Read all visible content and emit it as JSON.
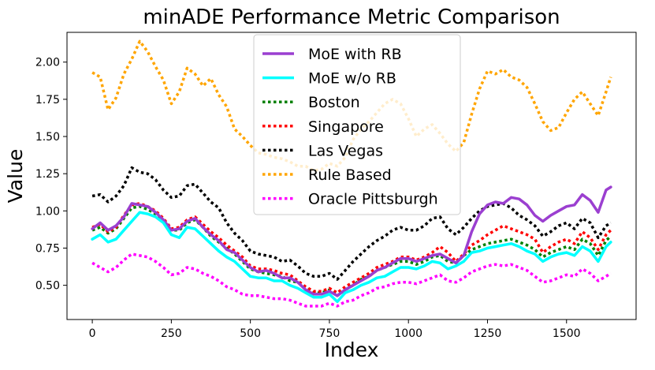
{
  "chart_data": {
    "type": "line",
    "title": "minADE Performance Metric Comparison",
    "xlabel": "Index",
    "ylabel": "Value",
    "xlim": [
      -80,
      1720
    ],
    "ylim": [
      0.27,
      2.2
    ],
    "xticks": [
      0,
      250,
      500,
      750,
      1000,
      1250,
      1500
    ],
    "xtick_labels": [
      "0",
      "250",
      "500",
      "750",
      "1000",
      "1250",
      "1500"
    ],
    "yticks": [
      0.5,
      0.75,
      1.0,
      1.25,
      1.5,
      1.75,
      2.0
    ],
    "ytick_labels": [
      "0.50",
      "0.75",
      "1.00",
      "1.25",
      "1.50",
      "1.75",
      "2.00"
    ],
    "legend_position": "top-center",
    "series": [
      {
        "name": "MoE with RB",
        "color": "#9b3fd0",
        "style": "solid",
        "x": [
          0,
          25,
          50,
          75,
          100,
          125,
          150,
          175,
          200,
          225,
          250,
          275,
          300,
          325,
          350,
          375,
          400,
          425,
          450,
          475,
          500,
          525,
          550,
          575,
          600,
          625,
          650,
          675,
          700,
          725,
          750,
          775,
          800,
          825,
          850,
          875,
          900,
          925,
          950,
          975,
          1000,
          1025,
          1050,
          1075,
          1100,
          1125,
          1150,
          1175,
          1200,
          1225,
          1250,
          1275,
          1300,
          1325,
          1350,
          1375,
          1400,
          1425,
          1450,
          1475,
          1500,
          1525,
          1550,
          1575,
          1600,
          1625,
          1640
        ],
        "values": [
          0.88,
          0.92,
          0.87,
          0.9,
          0.96,
          1.05,
          1.04,
          1.03,
          0.99,
          0.94,
          0.87,
          0.88,
          0.93,
          0.95,
          0.89,
          0.84,
          0.8,
          0.74,
          0.72,
          0.67,
          0.62,
          0.59,
          0.6,
          0.58,
          0.55,
          0.55,
          0.52,
          0.47,
          0.44,
          0.44,
          0.46,
          0.43,
          0.47,
          0.5,
          0.53,
          0.56,
          0.6,
          0.62,
          0.65,
          0.68,
          0.68,
          0.66,
          0.68,
          0.7,
          0.71,
          0.68,
          0.65,
          0.7,
          0.86,
          0.98,
          1.04,
          1.06,
          1.05,
          1.09,
          1.08,
          1.04,
          0.97,
          0.93,
          0.97,
          1.0,
          1.03,
          1.04,
          1.11,
          1.07,
          0.99,
          1.14,
          1.16
        ]
      },
      {
        "name": "MoE w/o RB",
        "color": "#00ffff",
        "style": "solid",
        "x": [
          0,
          25,
          50,
          75,
          100,
          125,
          150,
          175,
          200,
          225,
          250,
          275,
          300,
          325,
          350,
          375,
          400,
          425,
          450,
          475,
          500,
          525,
          550,
          575,
          600,
          625,
          650,
          675,
          700,
          725,
          750,
          775,
          800,
          825,
          850,
          875,
          900,
          925,
          950,
          975,
          1000,
          1025,
          1050,
          1075,
          1100,
          1125,
          1150,
          1175,
          1200,
          1225,
          1250,
          1275,
          1300,
          1325,
          1350,
          1375,
          1400,
          1425,
          1450,
          1475,
          1500,
          1525,
          1550,
          1575,
          1600,
          1625,
          1640
        ],
        "values": [
          0.81,
          0.84,
          0.79,
          0.81,
          0.87,
          0.93,
          0.99,
          0.98,
          0.96,
          0.92,
          0.84,
          0.82,
          0.89,
          0.88,
          0.83,
          0.78,
          0.73,
          0.69,
          0.66,
          0.61,
          0.56,
          0.55,
          0.55,
          0.53,
          0.53,
          0.5,
          0.48,
          0.45,
          0.42,
          0.42,
          0.44,
          0.39,
          0.45,
          0.47,
          0.5,
          0.52,
          0.55,
          0.56,
          0.59,
          0.62,
          0.62,
          0.61,
          0.63,
          0.66,
          0.65,
          0.61,
          0.63,
          0.66,
          0.72,
          0.73,
          0.75,
          0.76,
          0.77,
          0.78,
          0.76,
          0.73,
          0.71,
          0.66,
          0.69,
          0.71,
          0.72,
          0.7,
          0.76,
          0.73,
          0.66,
          0.76,
          0.79
        ]
      },
      {
        "name": "Boston",
        "color": "#008000",
        "style": "dotted",
        "x": [
          0,
          25,
          50,
          75,
          100,
          125,
          150,
          175,
          200,
          225,
          250,
          275,
          300,
          325,
          350,
          375,
          400,
          425,
          450,
          475,
          500,
          525,
          550,
          575,
          600,
          625,
          650,
          675,
          700,
          725,
          750,
          775,
          800,
          825,
          850,
          875,
          900,
          925,
          950,
          975,
          1000,
          1025,
          1050,
          1075,
          1100,
          1125,
          1150,
          1175,
          1200,
          1225,
          1250,
          1275,
          1300,
          1325,
          1350,
          1375,
          1400,
          1425,
          1450,
          1475,
          1500,
          1525,
          1550,
          1575,
          1600,
          1625,
          1640
        ],
        "values": [
          0.87,
          0.89,
          0.85,
          0.88,
          0.95,
          1.02,
          1.03,
          1.01,
          0.98,
          0.93,
          0.87,
          0.87,
          0.92,
          0.94,
          0.89,
          0.83,
          0.79,
          0.75,
          0.71,
          0.66,
          0.61,
          0.59,
          0.58,
          0.57,
          0.56,
          0.53,
          0.52,
          0.48,
          0.45,
          0.45,
          0.47,
          0.43,
          0.47,
          0.5,
          0.54,
          0.56,
          0.6,
          0.62,
          0.64,
          0.66,
          0.66,
          0.64,
          0.66,
          0.69,
          0.7,
          0.66,
          0.65,
          0.7,
          0.74,
          0.76,
          0.78,
          0.79,
          0.8,
          0.81,
          0.79,
          0.77,
          0.74,
          0.69,
          0.72,
          0.74,
          0.76,
          0.74,
          0.81,
          0.78,
          0.7,
          0.8,
          0.83
        ]
      },
      {
        "name": "Singapore",
        "color": "#ff0000",
        "style": "dotted",
        "x": [
          0,
          25,
          50,
          75,
          100,
          125,
          150,
          175,
          200,
          225,
          250,
          275,
          300,
          325,
          350,
          375,
          400,
          425,
          450,
          475,
          500,
          525,
          550,
          575,
          600,
          625,
          650,
          675,
          700,
          725,
          750,
          775,
          800,
          825,
          850,
          875,
          900,
          925,
          950,
          975,
          1000,
          1025,
          1050,
          1075,
          1100,
          1125,
          1150,
          1175,
          1200,
          1225,
          1250,
          1275,
          1300,
          1325,
          1350,
          1375,
          1400,
          1425,
          1450,
          1475,
          1500,
          1525,
          1550,
          1575,
          1600,
          1625,
          1640
        ],
        "values": [
          0.89,
          0.91,
          0.86,
          0.89,
          0.97,
          1.04,
          1.05,
          1.03,
          1.0,
          0.95,
          0.88,
          0.89,
          0.94,
          0.96,
          0.91,
          0.86,
          0.82,
          0.77,
          0.73,
          0.69,
          0.63,
          0.61,
          0.61,
          0.6,
          0.58,
          0.57,
          0.53,
          0.49,
          0.46,
          0.46,
          0.48,
          0.45,
          0.49,
          0.52,
          0.55,
          0.58,
          0.62,
          0.64,
          0.66,
          0.69,
          0.69,
          0.67,
          0.69,
          0.72,
          0.76,
          0.72,
          0.66,
          0.71,
          0.77,
          0.8,
          0.84,
          0.87,
          0.9,
          0.88,
          0.86,
          0.84,
          0.81,
          0.72,
          0.76,
          0.79,
          0.81,
          0.78,
          0.86,
          0.82,
          0.74,
          0.84,
          0.87
        ]
      },
      {
        "name": "Las Vegas",
        "color": "#000000",
        "style": "dotted",
        "x": [
          0,
          25,
          50,
          75,
          100,
          125,
          150,
          175,
          200,
          225,
          250,
          275,
          300,
          325,
          350,
          375,
          400,
          425,
          450,
          475,
          500,
          525,
          550,
          575,
          600,
          625,
          650,
          675,
          700,
          725,
          750,
          775,
          800,
          825,
          850,
          875,
          900,
          925,
          950,
          975,
          1000,
          1025,
          1050,
          1075,
          1100,
          1125,
          1150,
          1175,
          1200,
          1225,
          1250,
          1275,
          1300,
          1325,
          1350,
          1375,
          1400,
          1425,
          1450,
          1475,
          1500,
          1525,
          1550,
          1575,
          1600,
          1625,
          1640
        ],
        "values": [
          1.1,
          1.11,
          1.06,
          1.1,
          1.17,
          1.29,
          1.26,
          1.25,
          1.21,
          1.14,
          1.09,
          1.1,
          1.17,
          1.18,
          1.12,
          1.06,
          1.02,
          0.92,
          0.85,
          0.8,
          0.73,
          0.71,
          0.7,
          0.69,
          0.66,
          0.67,
          0.63,
          0.58,
          0.56,
          0.56,
          0.58,
          0.54,
          0.6,
          0.66,
          0.71,
          0.76,
          0.8,
          0.83,
          0.87,
          0.89,
          0.87,
          0.87,
          0.9,
          0.95,
          0.96,
          0.88,
          0.84,
          0.89,
          0.95,
          1.0,
          1.03,
          1.04,
          1.05,
          1.02,
          0.97,
          0.94,
          0.9,
          0.83,
          0.86,
          0.9,
          0.92,
          0.88,
          0.95,
          0.92,
          0.82,
          0.9,
          0.92
        ]
      },
      {
        "name": "Rule Based",
        "color": "#ffa500",
        "style": "dotted",
        "x": [
          0,
          25,
          50,
          75,
          100,
          125,
          150,
          175,
          200,
          225,
          250,
          275,
          300,
          325,
          350,
          375,
          400,
          425,
          450,
          475,
          500,
          525,
          550,
          575,
          600,
          625,
          650,
          675,
          700,
          725,
          750,
          775,
          800,
          825,
          850,
          875,
          900,
          925,
          950,
          975,
          1000,
          1025,
          1050,
          1075,
          1100,
          1125,
          1150,
          1175,
          1200,
          1225,
          1250,
          1275,
          1300,
          1325,
          1350,
          1375,
          1400,
          1425,
          1450,
          1475,
          1500,
          1525,
          1550,
          1575,
          1600,
          1625,
          1640
        ],
        "values": [
          1.93,
          1.9,
          1.68,
          1.76,
          1.92,
          2.02,
          2.14,
          2.07,
          1.97,
          1.88,
          1.72,
          1.8,
          1.96,
          1.92,
          1.84,
          1.89,
          1.78,
          1.7,
          1.55,
          1.5,
          1.44,
          1.39,
          1.38,
          1.36,
          1.35,
          1.33,
          1.3,
          1.3,
          1.27,
          1.28,
          1.32,
          1.3,
          1.36,
          1.48,
          1.55,
          1.6,
          1.66,
          1.72,
          1.75,
          1.72,
          1.62,
          1.5,
          1.55,
          1.58,
          1.52,
          1.45,
          1.4,
          1.46,
          1.65,
          1.82,
          1.94,
          1.92,
          1.95,
          1.9,
          1.88,
          1.83,
          1.72,
          1.6,
          1.54,
          1.56,
          1.66,
          1.75,
          1.8,
          1.72,
          1.64,
          1.8,
          1.9
        ]
      },
      {
        "name": "Oracle Pittsburgh",
        "color": "#ff00ff",
        "style": "dotted",
        "x": [
          0,
          25,
          50,
          75,
          100,
          125,
          150,
          175,
          200,
          225,
          250,
          275,
          300,
          325,
          350,
          375,
          400,
          425,
          450,
          475,
          500,
          525,
          550,
          575,
          600,
          625,
          650,
          675,
          700,
          725,
          750,
          775,
          800,
          825,
          850,
          875,
          900,
          925,
          950,
          975,
          1000,
          1025,
          1050,
          1075,
          1100,
          1125,
          1150,
          1175,
          1200,
          1225,
          1250,
          1275,
          1300,
          1325,
          1350,
          1375,
          1400,
          1425,
          1450,
          1475,
          1500,
          1525,
          1550,
          1575,
          1600,
          1625,
          1640
        ],
        "values": [
          0.65,
          0.62,
          0.59,
          0.62,
          0.67,
          0.71,
          0.7,
          0.69,
          0.66,
          0.62,
          0.57,
          0.58,
          0.62,
          0.61,
          0.58,
          0.56,
          0.53,
          0.49,
          0.47,
          0.44,
          0.43,
          0.43,
          0.42,
          0.41,
          0.41,
          0.4,
          0.38,
          0.36,
          0.36,
          0.36,
          0.38,
          0.36,
          0.39,
          0.4,
          0.43,
          0.45,
          0.48,
          0.49,
          0.51,
          0.52,
          0.52,
          0.51,
          0.53,
          0.55,
          0.57,
          0.53,
          0.52,
          0.55,
          0.59,
          0.61,
          0.63,
          0.64,
          0.63,
          0.64,
          0.62,
          0.6,
          0.56,
          0.52,
          0.53,
          0.55,
          0.57,
          0.56,
          0.61,
          0.58,
          0.53,
          0.56,
          0.58
        ]
      }
    ]
  }
}
